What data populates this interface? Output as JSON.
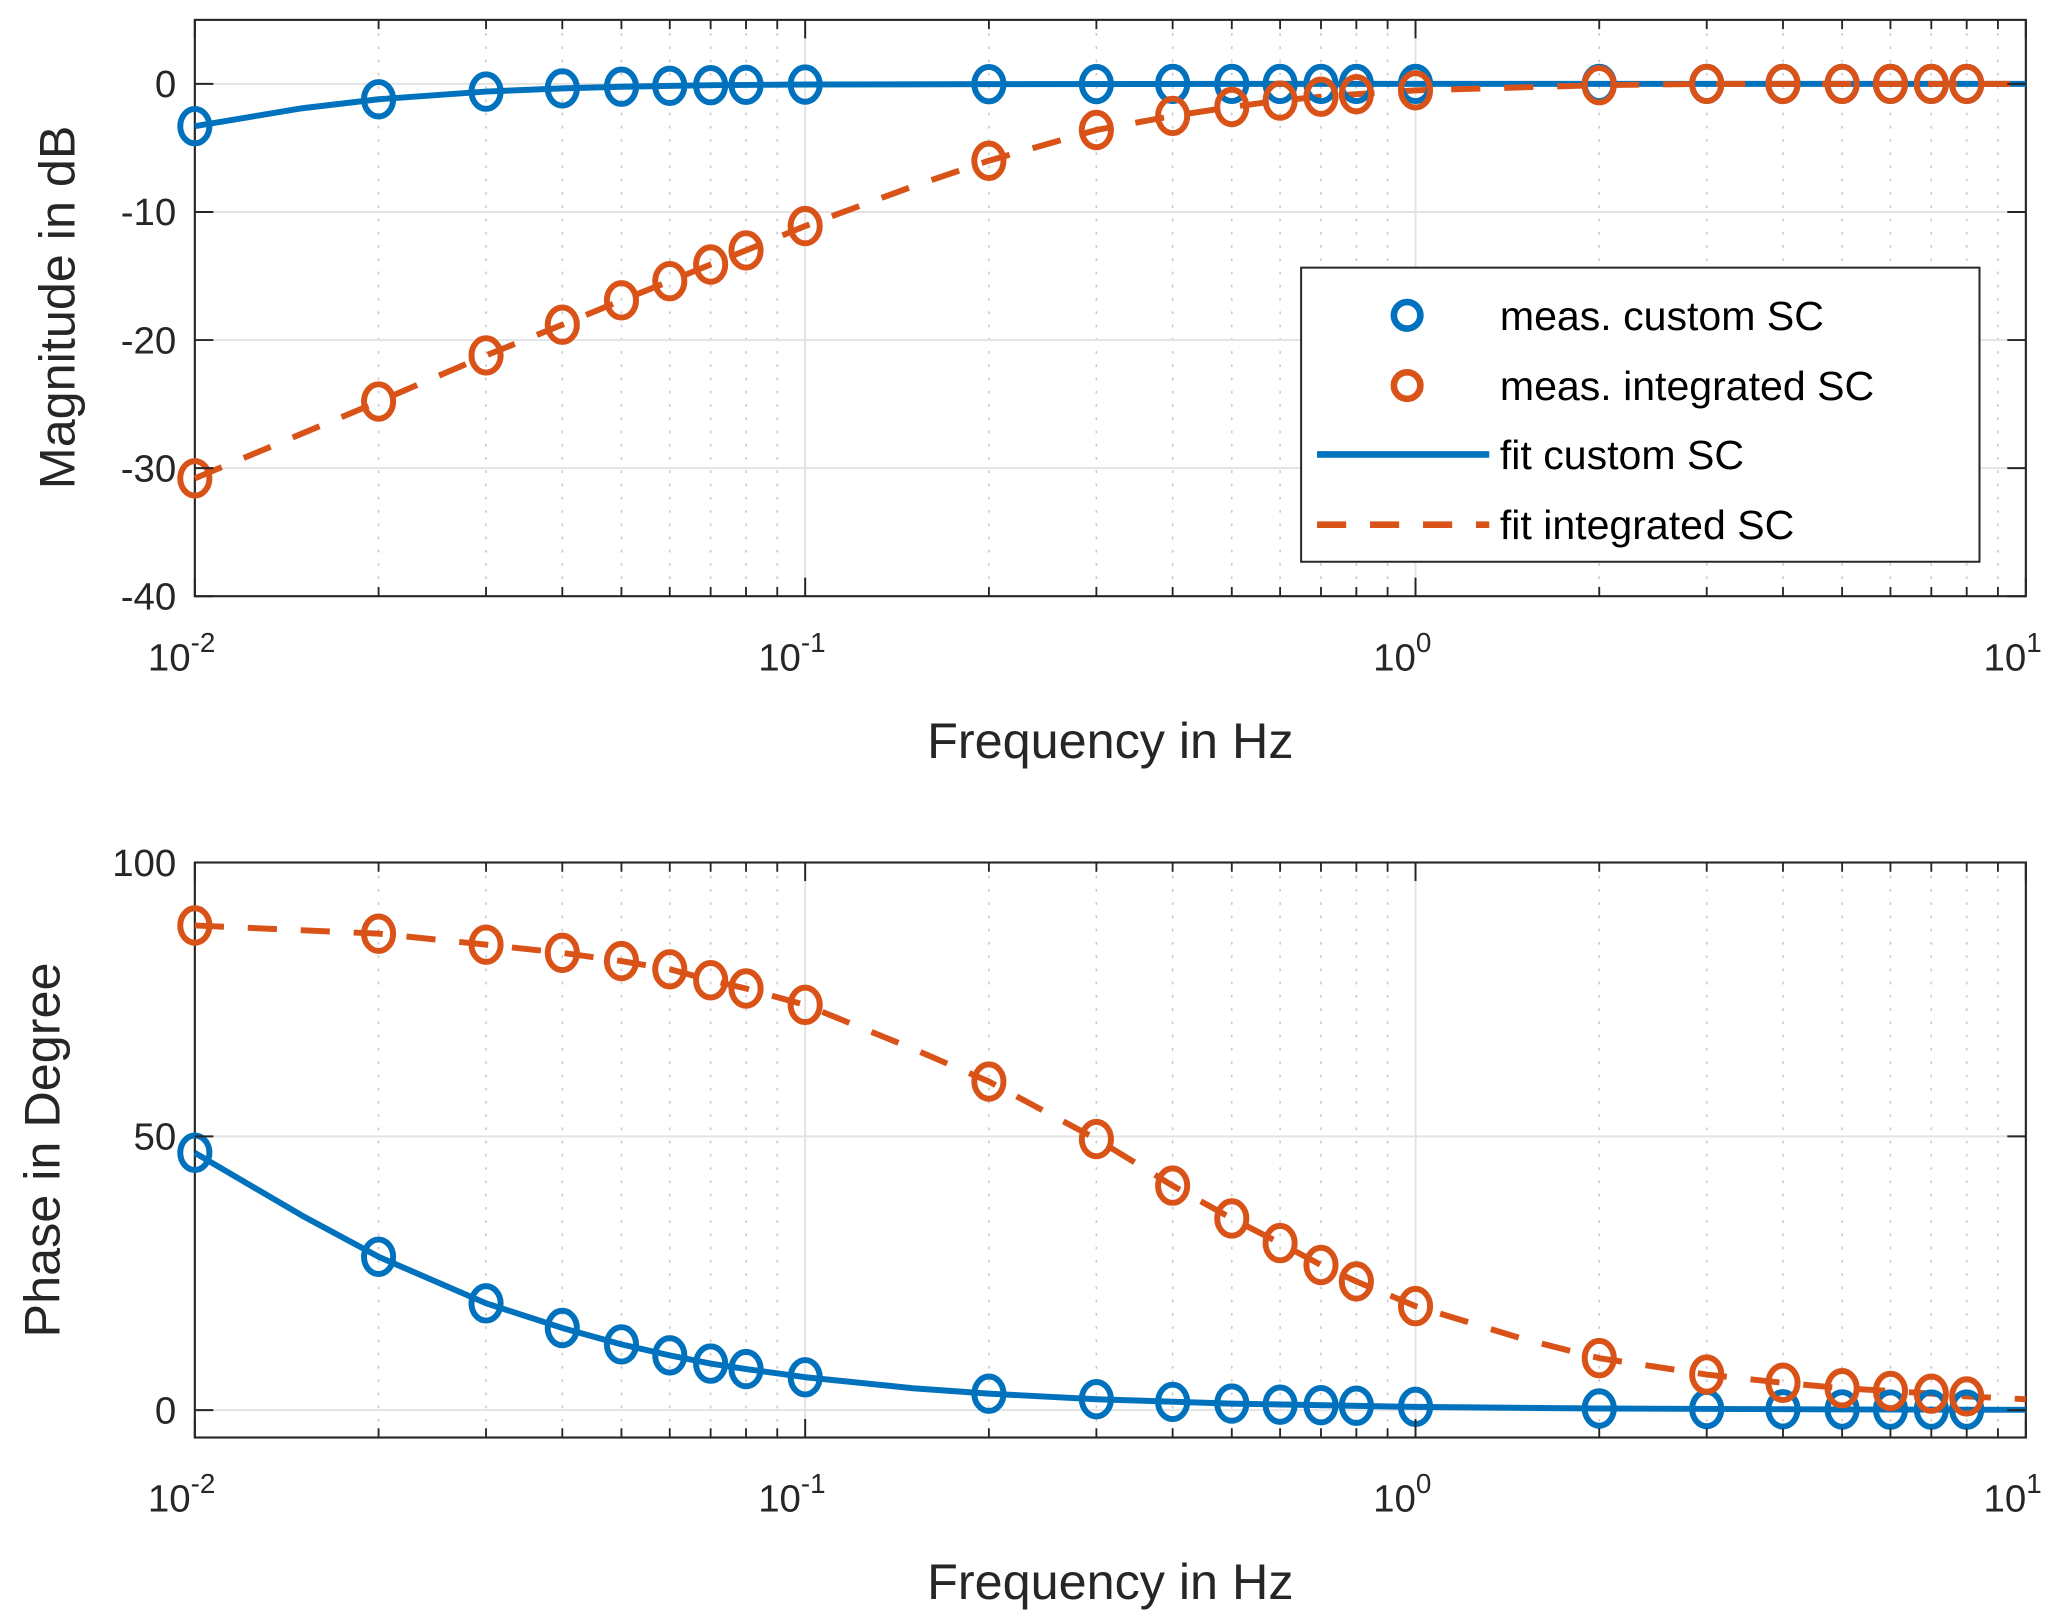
{
  "chart_data": [
    {
      "type": "line",
      "title": "",
      "xlabel": "Frequency in Hz",
      "ylabel": "Magnitude in dB",
      "xscale": "log",
      "xlim": [
        0.01,
        10
      ],
      "ylim": [
        -40,
        5
      ],
      "xticks": [
        {
          "base": "10",
          "exp": "-2",
          "value": 0.01
        },
        {
          "base": "10",
          "exp": "-1",
          "value": 0.1
        },
        {
          "base": "10",
          "exp": "0",
          "value": 1
        },
        {
          "base": "10",
          "exp": "1",
          "value": 10
        }
      ],
      "yticks": [
        {
          "label": "0",
          "value": 0
        },
        {
          "label": "-10",
          "value": -10
        },
        {
          "label": "-20",
          "value": -20
        },
        {
          "label": "-30",
          "value": -30
        },
        {
          "label": "-40",
          "value": -40
        }
      ],
      "grid": true,
      "minor_grid": true,
      "legend": {
        "placement": "center-right",
        "entries": [
          {
            "label": "meas. custom SC",
            "style": "marker-circle",
            "color": "#0072BD"
          },
          {
            "label": "meas. integrated SC",
            "style": "marker-circle",
            "color": "#D95319"
          },
          {
            "label": "fit custom SC",
            "style": "solid",
            "color": "#0072BD"
          },
          {
            "label": "fit integrated SC",
            "style": "dashed",
            "color": "#D95319"
          }
        ]
      },
      "x": [
        0.01,
        0.02,
        0.03,
        0.04,
        0.05,
        0.06,
        0.07,
        0.08,
        0.1,
        0.2,
        0.3,
        0.4,
        0.5,
        0.6,
        0.7,
        0.8,
        1,
        2,
        3,
        4,
        5,
        6,
        7,
        8
      ],
      "series": [
        {
          "name": "meas. custom SC",
          "kind": "markers",
          "color": "#0072BD",
          "values": [
            -3.3,
            -1.2,
            -0.6,
            -0.35,
            -0.22,
            -0.15,
            -0.1,
            -0.07,
            -0.05,
            -0.02,
            -0.01,
            0,
            0,
            0,
            0,
            0,
            0,
            0,
            0,
            0,
            0,
            0,
            0,
            0
          ]
        },
        {
          "name": "meas. integrated SC",
          "kind": "markers",
          "color": "#D95319",
          "values": [
            -30.8,
            -24.8,
            -21.2,
            -18.8,
            -16.9,
            -15.4,
            -14.1,
            -13.0,
            -11.1,
            -6.0,
            -3.6,
            -2.5,
            -1.8,
            -1.3,
            -1.0,
            -0.8,
            -0.5,
            -0.1,
            0,
            0,
            0,
            0,
            0,
            0
          ]
        },
        {
          "name": "fit custom SC",
          "kind": "solid",
          "color": "#0072BD",
          "x": [
            0.01,
            0.015,
            0.02,
            0.03,
            0.04,
            0.05,
            0.07,
            0.1,
            0.2,
            0.5,
            1,
            10
          ],
          "values": [
            -3.3,
            -1.9,
            -1.2,
            -0.6,
            -0.35,
            -0.22,
            -0.1,
            -0.05,
            -0.02,
            0,
            0,
            0
          ]
        },
        {
          "name": "fit integrated SC",
          "kind": "dashed",
          "color": "#D95319",
          "x": [
            0.01,
            0.02,
            0.03,
            0.04,
            0.05,
            0.06,
            0.07,
            0.08,
            0.1,
            0.15,
            0.2,
            0.3,
            0.4,
            0.5,
            0.6,
            0.7,
            0.8,
            1,
            2,
            3,
            10
          ],
          "values": [
            -30.8,
            -24.8,
            -21.2,
            -18.8,
            -16.9,
            -15.4,
            -14.1,
            -13.0,
            -11.1,
            -8.0,
            -6.0,
            -3.6,
            -2.5,
            -1.8,
            -1.3,
            -1.0,
            -0.8,
            -0.5,
            -0.1,
            0,
            0
          ]
        }
      ]
    },
    {
      "type": "line",
      "title": "",
      "xlabel": "Frequency in Hz",
      "ylabel": "Phase in Degree",
      "xscale": "log",
      "xlim": [
        0.01,
        10
      ],
      "ylim": [
        -5,
        100
      ],
      "xticks": [
        {
          "base": "10",
          "exp": "-2",
          "value": 0.01
        },
        {
          "base": "10",
          "exp": "-1",
          "value": 0.1
        },
        {
          "base": "10",
          "exp": "0",
          "value": 1
        },
        {
          "base": "10",
          "exp": "1",
          "value": 10
        }
      ],
      "yticks": [
        {
          "label": "0",
          "value": 0
        },
        {
          "label": "50",
          "value": 50
        },
        {
          "label": "100",
          "value": 100
        }
      ],
      "grid": true,
      "minor_grid": true,
      "x": [
        0.01,
        0.02,
        0.03,
        0.04,
        0.05,
        0.06,
        0.07,
        0.08,
        0.1,
        0.2,
        0.3,
        0.4,
        0.5,
        0.6,
        0.7,
        0.8,
        1,
        2,
        3,
        4,
        5,
        6,
        7,
        8
      ],
      "series": [
        {
          "name": "meas. custom SC",
          "kind": "markers",
          "color": "#0072BD",
          "values": [
            47,
            28,
            19.5,
            15,
            12,
            10,
            8.5,
            7.5,
            6,
            3,
            2,
            1.5,
            1.2,
            1,
            0.9,
            0.8,
            0.6,
            0.3,
            0.2,
            0.15,
            0.12,
            0.1,
            0.1,
            0.1
          ]
        },
        {
          "name": "meas. integrated SC",
          "kind": "markers",
          "color": "#D95319",
          "values": [
            88.5,
            87,
            85,
            83.5,
            82,
            80.5,
            78.5,
            77,
            74,
            60,
            49.5,
            41,
            35,
            30.5,
            26.5,
            23.5,
            19,
            9.5,
            6.5,
            5,
            4,
            3.5,
            3,
            2.5
          ]
        },
        {
          "name": "fit custom SC",
          "kind": "solid",
          "color": "#0072BD",
          "x": [
            0.01,
            0.015,
            0.02,
            0.03,
            0.04,
            0.05,
            0.06,
            0.07,
            0.08,
            0.1,
            0.15,
            0.2,
            0.3,
            0.5,
            1,
            2,
            5,
            10
          ],
          "values": [
            47,
            35.5,
            28,
            19.5,
            15,
            12,
            10,
            8.5,
            7.5,
            6,
            4,
            3,
            2,
            1.2,
            0.6,
            0.3,
            0.12,
            0.06
          ]
        },
        {
          "name": "fit integrated SC",
          "kind": "dashed",
          "color": "#D95319",
          "x": [
            0.01,
            0.02,
            0.03,
            0.04,
            0.05,
            0.06,
            0.07,
            0.08,
            0.1,
            0.15,
            0.2,
            0.3,
            0.4,
            0.5,
            0.6,
            0.7,
            0.8,
            1,
            1.5,
            2,
            3,
            4,
            5,
            6,
            7,
            8,
            10
          ],
          "values": [
            88.5,
            87,
            85,
            83.5,
            82,
            80.5,
            78.5,
            77,
            74,
            66,
            60,
            49.5,
            41,
            35,
            30.5,
            26.5,
            23.5,
            19,
            13,
            9.5,
            6.5,
            5,
            4,
            3.5,
            3,
            2.5,
            2
          ]
        }
      ]
    }
  ]
}
